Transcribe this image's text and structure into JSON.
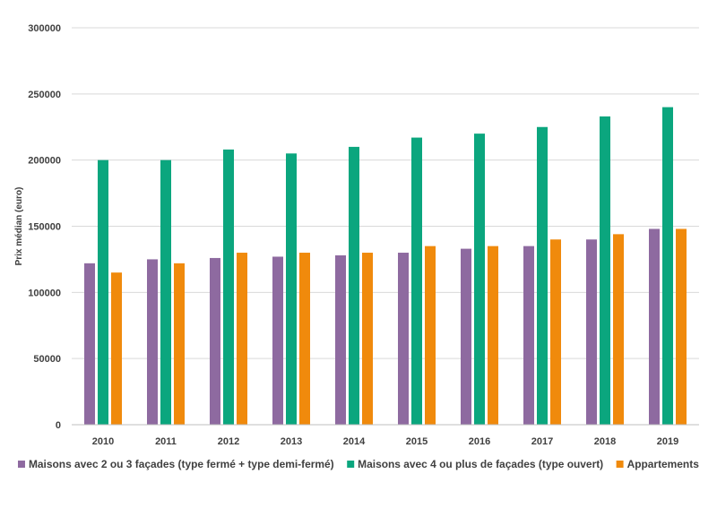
{
  "chart_data": {
    "type": "bar",
    "title": "",
    "xlabel": "",
    "ylabel": "Prix médian (euro)",
    "ylim": [
      0,
      300000
    ],
    "yticks": [
      0,
      50000,
      100000,
      150000,
      200000,
      250000,
      300000
    ],
    "grid": true,
    "legend_position": "bottom",
    "categories": [
      "2010",
      "2011",
      "2012",
      "2013",
      "2014",
      "2015",
      "2016",
      "2017",
      "2018",
      "2019"
    ],
    "series": [
      {
        "name": "Maisons avec 2 ou 3 façades (type fermé + type demi-fermé)",
        "color": "#8e6aa0",
        "values": [
          122000,
          125000,
          126000,
          127000,
          128000,
          130000,
          133000,
          135000,
          140000,
          148000
        ]
      },
      {
        "name": "Maisons avec 4 ou plus de façades (type ouvert)",
        "color": "#0ba67e",
        "values": [
          200000,
          200000,
          208000,
          205000,
          210000,
          217000,
          220000,
          225000,
          233000,
          240000
        ]
      },
      {
        "name": "Appartements",
        "color": "#f08a0c",
        "values": [
          115000,
          122000,
          130000,
          130000,
          130000,
          135000,
          135000,
          140000,
          144000,
          148000
        ]
      }
    ]
  }
}
